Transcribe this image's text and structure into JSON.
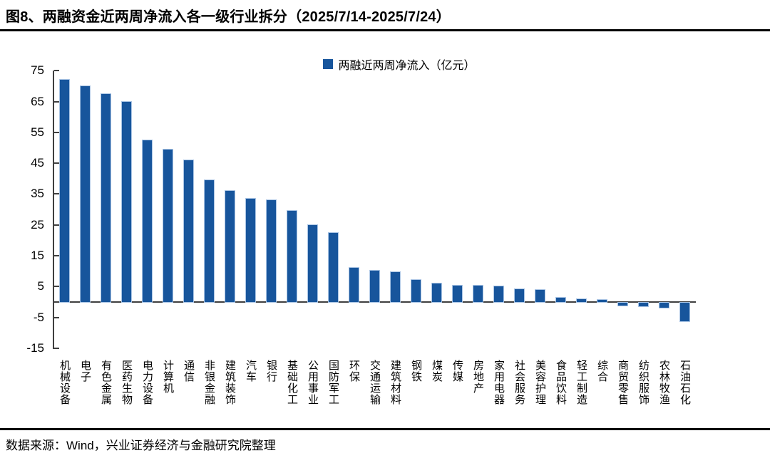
{
  "header": {
    "title": "图8、两融资金近两周净流入各一级行业拆分（2025/7/14-2025/7/24）"
  },
  "footer": {
    "source": "数据来源：Wind，兴业证券经济与金融研究院整理"
  },
  "chart_data": {
    "type": "bar",
    "title": "图8、两融资金近两周净流入各一级行业拆分（2025/7/14-2025/7/24）",
    "legend": "两融近两周净流入（亿元）",
    "legend_position": "top-center",
    "grid": false,
    "ylim": [
      -15,
      75
    ],
    "ytick_interval": 10,
    "yticks": [
      75,
      65,
      55,
      45,
      35,
      25,
      15,
      5,
      -5,
      -15
    ],
    "xlabel": "",
    "ylabel": "",
    "bar_color": "#17559C",
    "bar_border_color": "#A9C4E4",
    "axis_color": "#3F3F3F",
    "categories": [
      "机械设备",
      "电子",
      "有色金属",
      "医药生物",
      "电力设备",
      "计算机",
      "通信",
      "非银金融",
      "建筑装饰",
      "汽车",
      "银行",
      "基础化工",
      "公用事业",
      "国防军工",
      "环保",
      "交通运输",
      "建筑材料",
      "钢铁",
      "煤炭",
      "传媒",
      "房地产",
      "家用电器",
      "社会服务",
      "美容护理",
      "食品饮料",
      "轻工制造",
      "综合",
      "商贸零售",
      "纺织服饰",
      "农林牧渔",
      "石油石化"
    ],
    "values": [
      72,
      70,
      67.5,
      65,
      52.5,
      49.5,
      46,
      39.5,
      36,
      33.5,
      33,
      29.5,
      25,
      22.3,
      11,
      10.2,
      9.8,
      7.2,
      6,
      5.4,
      5.3,
      5.1,
      4.2,
      4,
      1.5,
      1,
      0.8,
      -1,
      -1.1,
      -1.7,
      -5.9
    ]
  }
}
